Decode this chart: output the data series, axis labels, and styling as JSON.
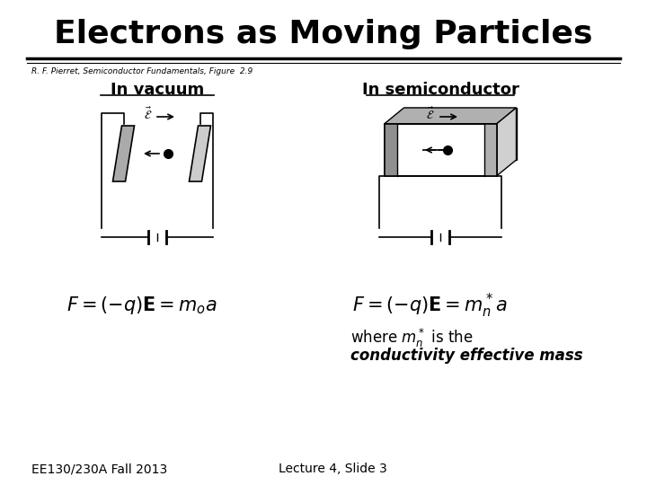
{
  "title": "Electrons as Moving Particles",
  "subtitle": "R. F. Pierret, Semiconductor Fundamentals, Figure  2.9",
  "left_label": "In vacuum",
  "right_label": "In semiconductor",
  "footer_left": "EE130/230A Fall 2013",
  "footer_right": "Lecture 4, Slide 3",
  "bg_color": "#ffffff",
  "text_color": "#000000"
}
